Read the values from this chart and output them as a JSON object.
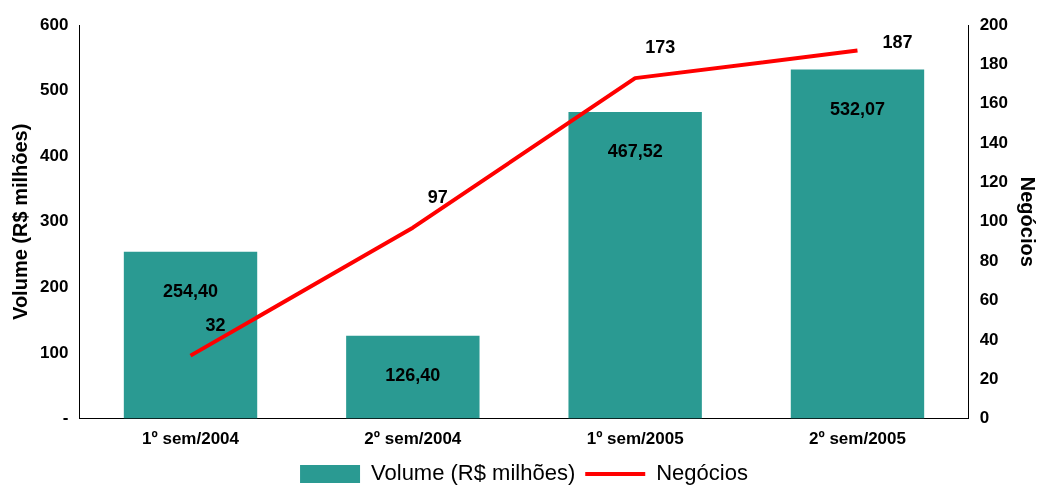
{
  "chart_data": {
    "type": "bar",
    "categories": [
      "1º sem/2004",
      "2º sem/2004",
      "1º sem/2005",
      "2º sem/2005"
    ],
    "ylabel": "Volume (R$ milhões)",
    "y2label": "Negócios",
    "series": [
      {
        "name": "Volume (R$ milhões)",
        "color": "#2a9a92",
        "values": [
          254.4,
          126.4,
          467.52,
          532.07
        ],
        "value_labels": [
          "254,40",
          "126,40",
          "467,52",
          "532,07"
        ]
      },
      {
        "name": "Negócios",
        "type": "line",
        "axis": "y2",
        "color": "#ff0000",
        "values": [
          32,
          97,
          173,
          187
        ],
        "value_labels": [
          "32",
          "97",
          "173",
          "187"
        ]
      }
    ],
    "ylim": [
      0,
      600
    ],
    "yticks": [
      {
        "value": 0,
        "label": "-"
      },
      100,
      200,
      300,
      400,
      500,
      600
    ],
    "y2lim": [
      0,
      200
    ],
    "y2ticks": [
      0,
      20,
      40,
      60,
      80,
      100,
      120,
      140,
      160,
      180,
      200
    ],
    "grid": false,
    "legend": "bottom",
    "marker": "none",
    "line_style": "solid"
  }
}
